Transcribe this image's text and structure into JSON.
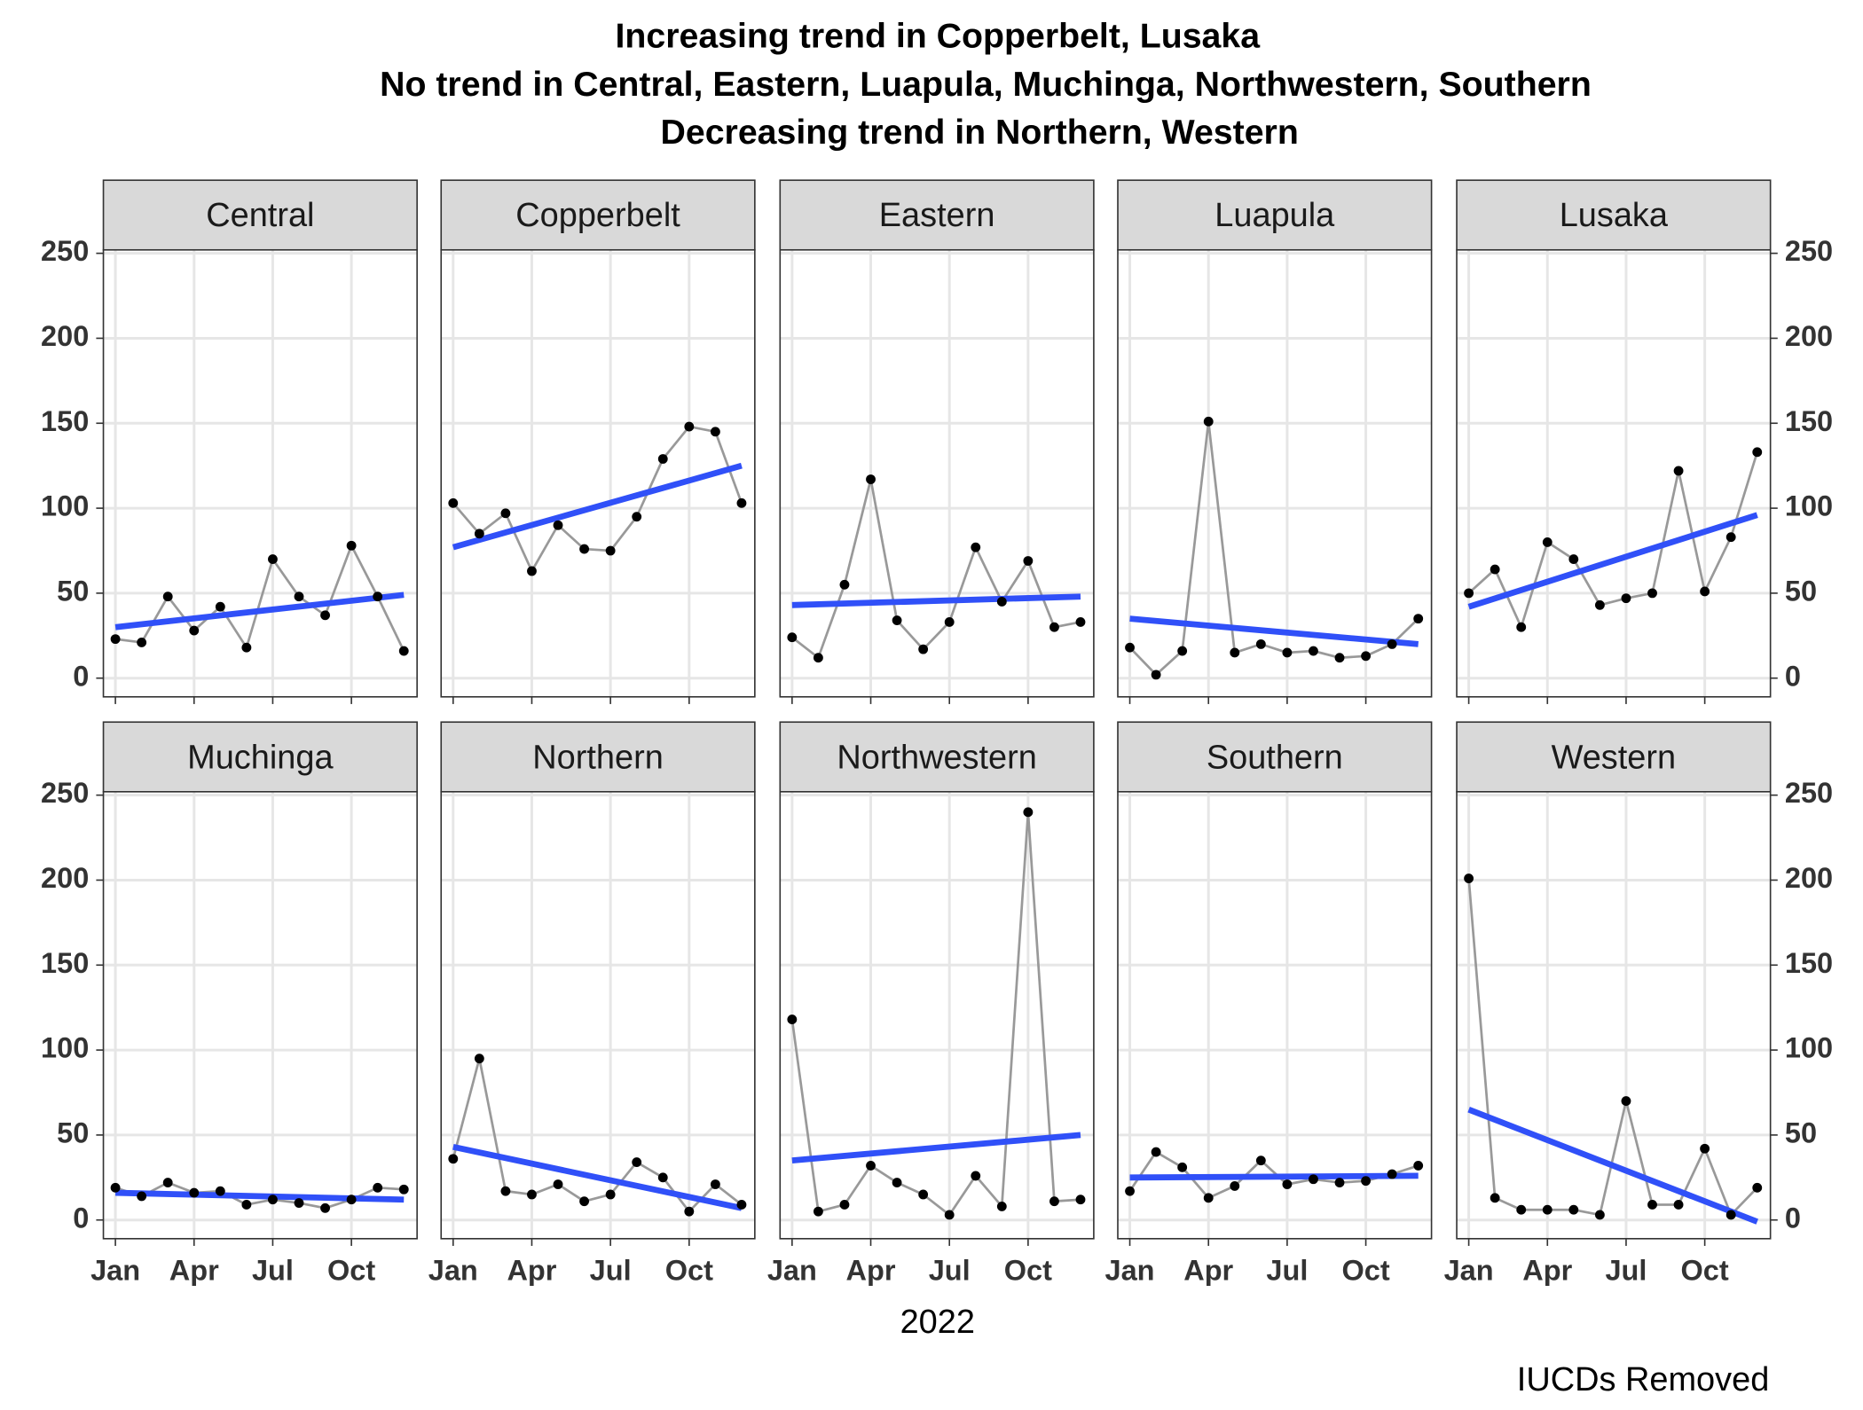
{
  "chart_data": {
    "type": "line",
    "title": [
      "Increasing trend in Copperbelt, Lusaka",
      "No trend in Central, Eastern, Luapula, Muchinga, Northwestern, Southern",
      "Decreasing trend in Northern, Western"
    ],
    "x_label": "2022",
    "caption": "IUCDs Removed",
    "x": [
      "2022-01",
      "2022-02",
      "2022-03",
      "2022-04",
      "2022-05",
      "2022-06",
      "2022-07",
      "2022-08",
      "2022-09",
      "2022-10",
      "2022-11",
      "2022-12"
    ],
    "xticks": [
      {
        "value": "2022-01",
        "label": "Jan"
      },
      {
        "value": "2022-04",
        "label": "Apr"
      },
      {
        "value": "2022-07",
        "label": "Jul"
      },
      {
        "value": "2022-10",
        "label": "Oct"
      }
    ],
    "ylim": [
      -11,
      252
    ],
    "yticks": [
      0,
      50,
      100,
      150,
      200,
      250
    ],
    "grid": true,
    "point_color": "#000000",
    "line_color": "#999999",
    "trend_color": "#3050f8",
    "panels": [
      {
        "name": "Central",
        "values": [
          23,
          21,
          48,
          28,
          42,
          18,
          70,
          48,
          37,
          78,
          48,
          16
        ],
        "trend": [
          30,
          49
        ]
      },
      {
        "name": "Copperbelt",
        "values": [
          103,
          85,
          97,
          63,
          90,
          76,
          75,
          95,
          129,
          148,
          145,
          103
        ],
        "trend": [
          77,
          125
        ]
      },
      {
        "name": "Eastern",
        "values": [
          24,
          12,
          55,
          117,
          34,
          17,
          33,
          77,
          45,
          69,
          30,
          33
        ],
        "trend": [
          43,
          48
        ]
      },
      {
        "name": "Luapula",
        "values": [
          18,
          2,
          16,
          151,
          15,
          20,
          15,
          16,
          12,
          13,
          20,
          35
        ],
        "trend": [
          35,
          20
        ]
      },
      {
        "name": "Lusaka",
        "values": [
          50,
          64,
          30,
          80,
          70,
          43,
          47,
          50,
          122,
          51,
          83,
          133
        ],
        "trend": [
          42,
          96
        ]
      },
      {
        "name": "Muchinga",
        "values": [
          19,
          14,
          22,
          16,
          17,
          9,
          12,
          10,
          7,
          12,
          19,
          18
        ],
        "trend": [
          16,
          12
        ]
      },
      {
        "name": "Northern",
        "values": [
          36,
          95,
          17,
          15,
          21,
          11,
          15,
          34,
          25,
          5,
          21,
          9
        ],
        "trend": [
          43,
          7
        ]
      },
      {
        "name": "Northwestern",
        "values": [
          118,
          5,
          9,
          32,
          22,
          15,
          3,
          26,
          8,
          240,
          11,
          12
        ],
        "trend": [
          35,
          50
        ]
      },
      {
        "name": "Southern",
        "values": [
          17,
          40,
          31,
          13,
          20,
          35,
          21,
          24,
          22,
          23,
          27,
          32
        ],
        "trend": [
          25,
          26
        ]
      },
      {
        "name": "Western",
        "values": [
          201,
          13,
          6,
          6,
          6,
          3,
          70,
          9,
          9,
          42,
          3,
          19
        ],
        "trend": [
          65,
          -1
        ]
      }
    ]
  }
}
